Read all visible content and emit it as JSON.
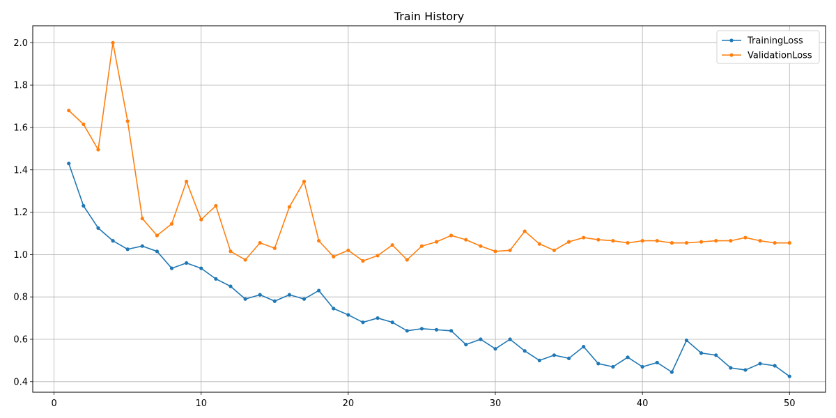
{
  "chart_data": {
    "type": "line",
    "title": "Train History",
    "xlabel": "",
    "ylabel": "",
    "xlim": [
      -1.45,
      52.45
    ],
    "ylim": [
      0.35,
      2.08
    ],
    "xticks": [
      0,
      10,
      20,
      30,
      40,
      50
    ],
    "yticks": [
      0.4,
      0.6,
      0.8,
      1.0,
      1.2,
      1.4,
      1.6,
      1.8,
      2.0
    ],
    "grid": true,
    "legend_position": "top-right",
    "x": [
      1,
      2,
      3,
      4,
      5,
      6,
      7,
      8,
      9,
      10,
      11,
      12,
      13,
      14,
      15,
      16,
      17,
      18,
      19,
      20,
      21,
      22,
      23,
      24,
      25,
      26,
      27,
      28,
      29,
      30,
      31,
      32,
      33,
      34,
      35,
      36,
      37,
      38,
      39,
      40,
      41,
      42,
      43,
      44,
      45,
      46,
      47,
      48,
      49,
      50
    ],
    "series": [
      {
        "name": "TrainingLoss",
        "color": "#1f77b4",
        "values": [
          1.43,
          1.23,
          1.125,
          1.065,
          1.025,
          1.04,
          1.015,
          0.935,
          0.96,
          0.935,
          0.885,
          0.85,
          0.79,
          0.81,
          0.78,
          0.81,
          0.79,
          0.83,
          0.745,
          0.715,
          0.68,
          0.7,
          0.68,
          0.64,
          0.65,
          0.645,
          0.64,
          0.575,
          0.6,
          0.555,
          0.6,
          0.545,
          0.5,
          0.525,
          0.51,
          0.565,
          0.485,
          0.47,
          0.515,
          0.47,
          0.49,
          0.445,
          0.595,
          0.535,
          0.525,
          0.465,
          0.455,
          0.485,
          0.475,
          0.425
        ]
      },
      {
        "name": "ValidationLoss",
        "color": "#ff7f0e",
        "values": [
          1.68,
          1.615,
          1.495,
          2.0,
          1.63,
          1.17,
          1.09,
          1.145,
          1.345,
          1.165,
          1.23,
          1.015,
          0.975,
          1.055,
          1.03,
          1.225,
          1.345,
          1.065,
          0.99,
          1.02,
          0.97,
          0.995,
          1.045,
          0.975,
          1.04,
          1.06,
          1.09,
          1.07,
          1.04,
          1.015,
          1.02,
          1.11,
          1.05,
          1.02,
          1.06,
          1.08,
          1.07,
          1.065,
          1.055,
          1.065,
          1.065,
          1.055,
          1.055,
          1.06,
          1.065,
          1.065,
          1.08,
          1.065,
          1.055,
          1.055
        ]
      }
    ]
  }
}
